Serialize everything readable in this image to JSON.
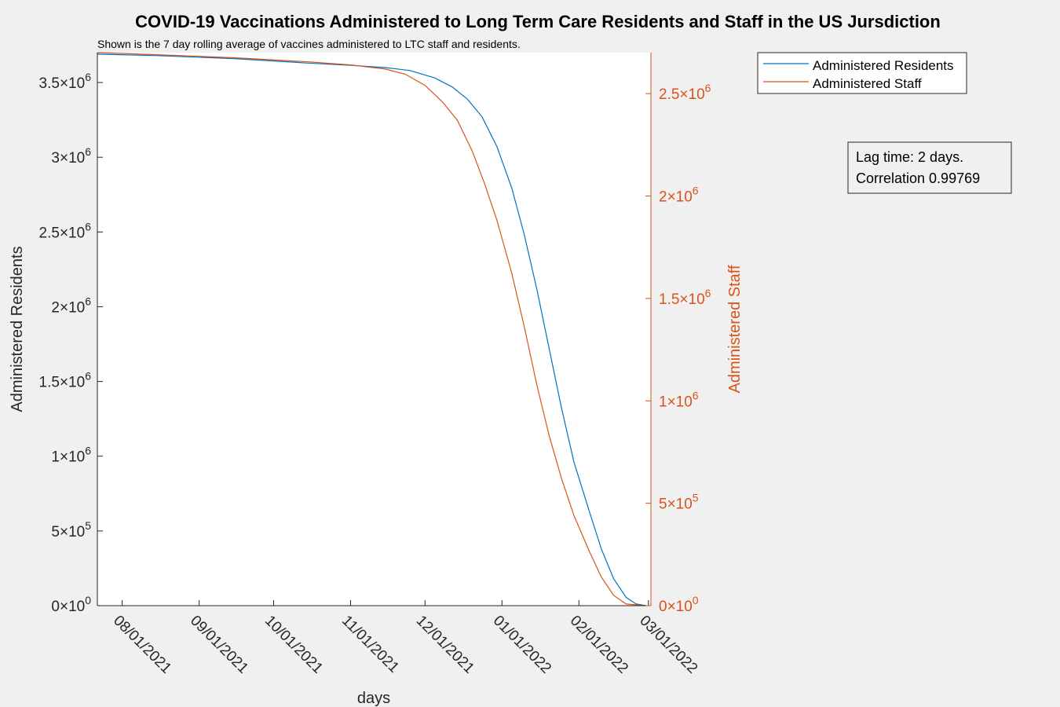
{
  "chart_data": {
    "type": "line",
    "title": "COVID-19 Vaccinations Administered to Long Term Care Residents and Staff in the US Jursdiction",
    "subtitle": "Shown is the 7 day rolling average of vaccines administered to LTC staff and residents.",
    "xlabel": "days",
    "ylabel_left": "Administered Residents",
    "ylabel_right": "Administered Staff",
    "x_ticks": [
      "08/01/2021",
      "09/01/2021",
      "10/01/2021",
      "11/01/2021",
      "12/01/2021",
      "01/01/2022",
      "02/01/2022",
      "03/01/2022"
    ],
    "xlim": [
      "2021-07-22",
      "2022-03-02"
    ],
    "ylim_left": [
      0,
      3700000
    ],
    "ylim_right": [
      0,
      2700000
    ],
    "y_ticks_left": [
      {
        "value": 0,
        "mant": "0",
        "exp": "0"
      },
      {
        "value": 500000,
        "mant": "5",
        "exp": "5"
      },
      {
        "value": 1000000,
        "mant": "1",
        "exp": "6"
      },
      {
        "value": 1500000,
        "mant": "1.5",
        "exp": "6"
      },
      {
        "value": 2000000,
        "mant": "2",
        "exp": "6"
      },
      {
        "value": 2500000,
        "mant": "2.5",
        "exp": "6"
      },
      {
        "value": 3000000,
        "mant": "3",
        "exp": "6"
      },
      {
        "value": 3500000,
        "mant": "3.5",
        "exp": "6"
      }
    ],
    "y_ticks_right": [
      {
        "value": 0,
        "mant": "0",
        "exp": "0"
      },
      {
        "value": 500000,
        "mant": "5",
        "exp": "5"
      },
      {
        "value": 1000000,
        "mant": "1",
        "exp": "6"
      },
      {
        "value": 1500000,
        "mant": "1.5",
        "exp": "6"
      },
      {
        "value": 2000000,
        "mant": "2",
        "exp": "6"
      },
      {
        "value": 2500000,
        "mant": "2.5",
        "exp": "6"
      }
    ],
    "series": [
      {
        "name": "Administered Residents",
        "color": "#0072bd",
        "axis": "left",
        "points": [
          [
            "2021-07-22",
            3690000
          ],
          [
            "2021-08-15",
            3680000
          ],
          [
            "2021-09-15",
            3660000
          ],
          [
            "2021-10-15",
            3630000
          ],
          [
            "2021-11-01",
            3615000
          ],
          [
            "2021-11-15",
            3600000
          ],
          [
            "2021-11-25",
            3580000
          ],
          [
            "2021-12-05",
            3530000
          ],
          [
            "2021-12-12",
            3470000
          ],
          [
            "2021-12-18",
            3390000
          ],
          [
            "2021-12-24",
            3270000
          ],
          [
            "2021-12-30",
            3070000
          ],
          [
            "2022-01-05",
            2790000
          ],
          [
            "2022-01-10",
            2480000
          ],
          [
            "2022-01-15",
            2120000
          ],
          [
            "2022-01-20",
            1720000
          ],
          [
            "2022-01-25",
            1320000
          ],
          [
            "2022-01-30",
            960000
          ],
          [
            "2022-02-05",
            640000
          ],
          [
            "2022-02-10",
            380000
          ],
          [
            "2022-02-15",
            180000
          ],
          [
            "2022-02-20",
            55000
          ],
          [
            "2022-02-24",
            12000
          ],
          [
            "2022-02-28",
            0
          ]
        ]
      },
      {
        "name": "Administered Staff",
        "color": "#d95319",
        "axis": "right",
        "points": [
          [
            "2021-07-22",
            2700000
          ],
          [
            "2021-08-15",
            2690000
          ],
          [
            "2021-09-15",
            2675000
          ],
          [
            "2021-10-15",
            2655000
          ],
          [
            "2021-11-01",
            2640000
          ],
          [
            "2021-11-15",
            2620000
          ],
          [
            "2021-11-23",
            2595000
          ],
          [
            "2021-12-01",
            2540000
          ],
          [
            "2021-12-08",
            2460000
          ],
          [
            "2021-12-14",
            2370000
          ],
          [
            "2021-12-20",
            2220000
          ],
          [
            "2021-12-25",
            2060000
          ],
          [
            "2021-12-30",
            1880000
          ],
          [
            "2022-01-05",
            1620000
          ],
          [
            "2022-01-10",
            1360000
          ],
          [
            "2022-01-15",
            1080000
          ],
          [
            "2022-01-20",
            830000
          ],
          [
            "2022-01-25",
            620000
          ],
          [
            "2022-01-30",
            440000
          ],
          [
            "2022-02-05",
            270000
          ],
          [
            "2022-02-10",
            140000
          ],
          [
            "2022-02-15",
            50000
          ],
          [
            "2022-02-20",
            8000
          ],
          [
            "2022-02-28",
            0
          ]
        ]
      }
    ],
    "legend": {
      "placement": "outside-top-right",
      "entries": [
        "Administered Residents",
        "Administered Staff"
      ]
    },
    "annotation": {
      "lines": [
        "Lag time: 2 days.",
        "Correlation 0.99769"
      ]
    },
    "grid": false
  }
}
